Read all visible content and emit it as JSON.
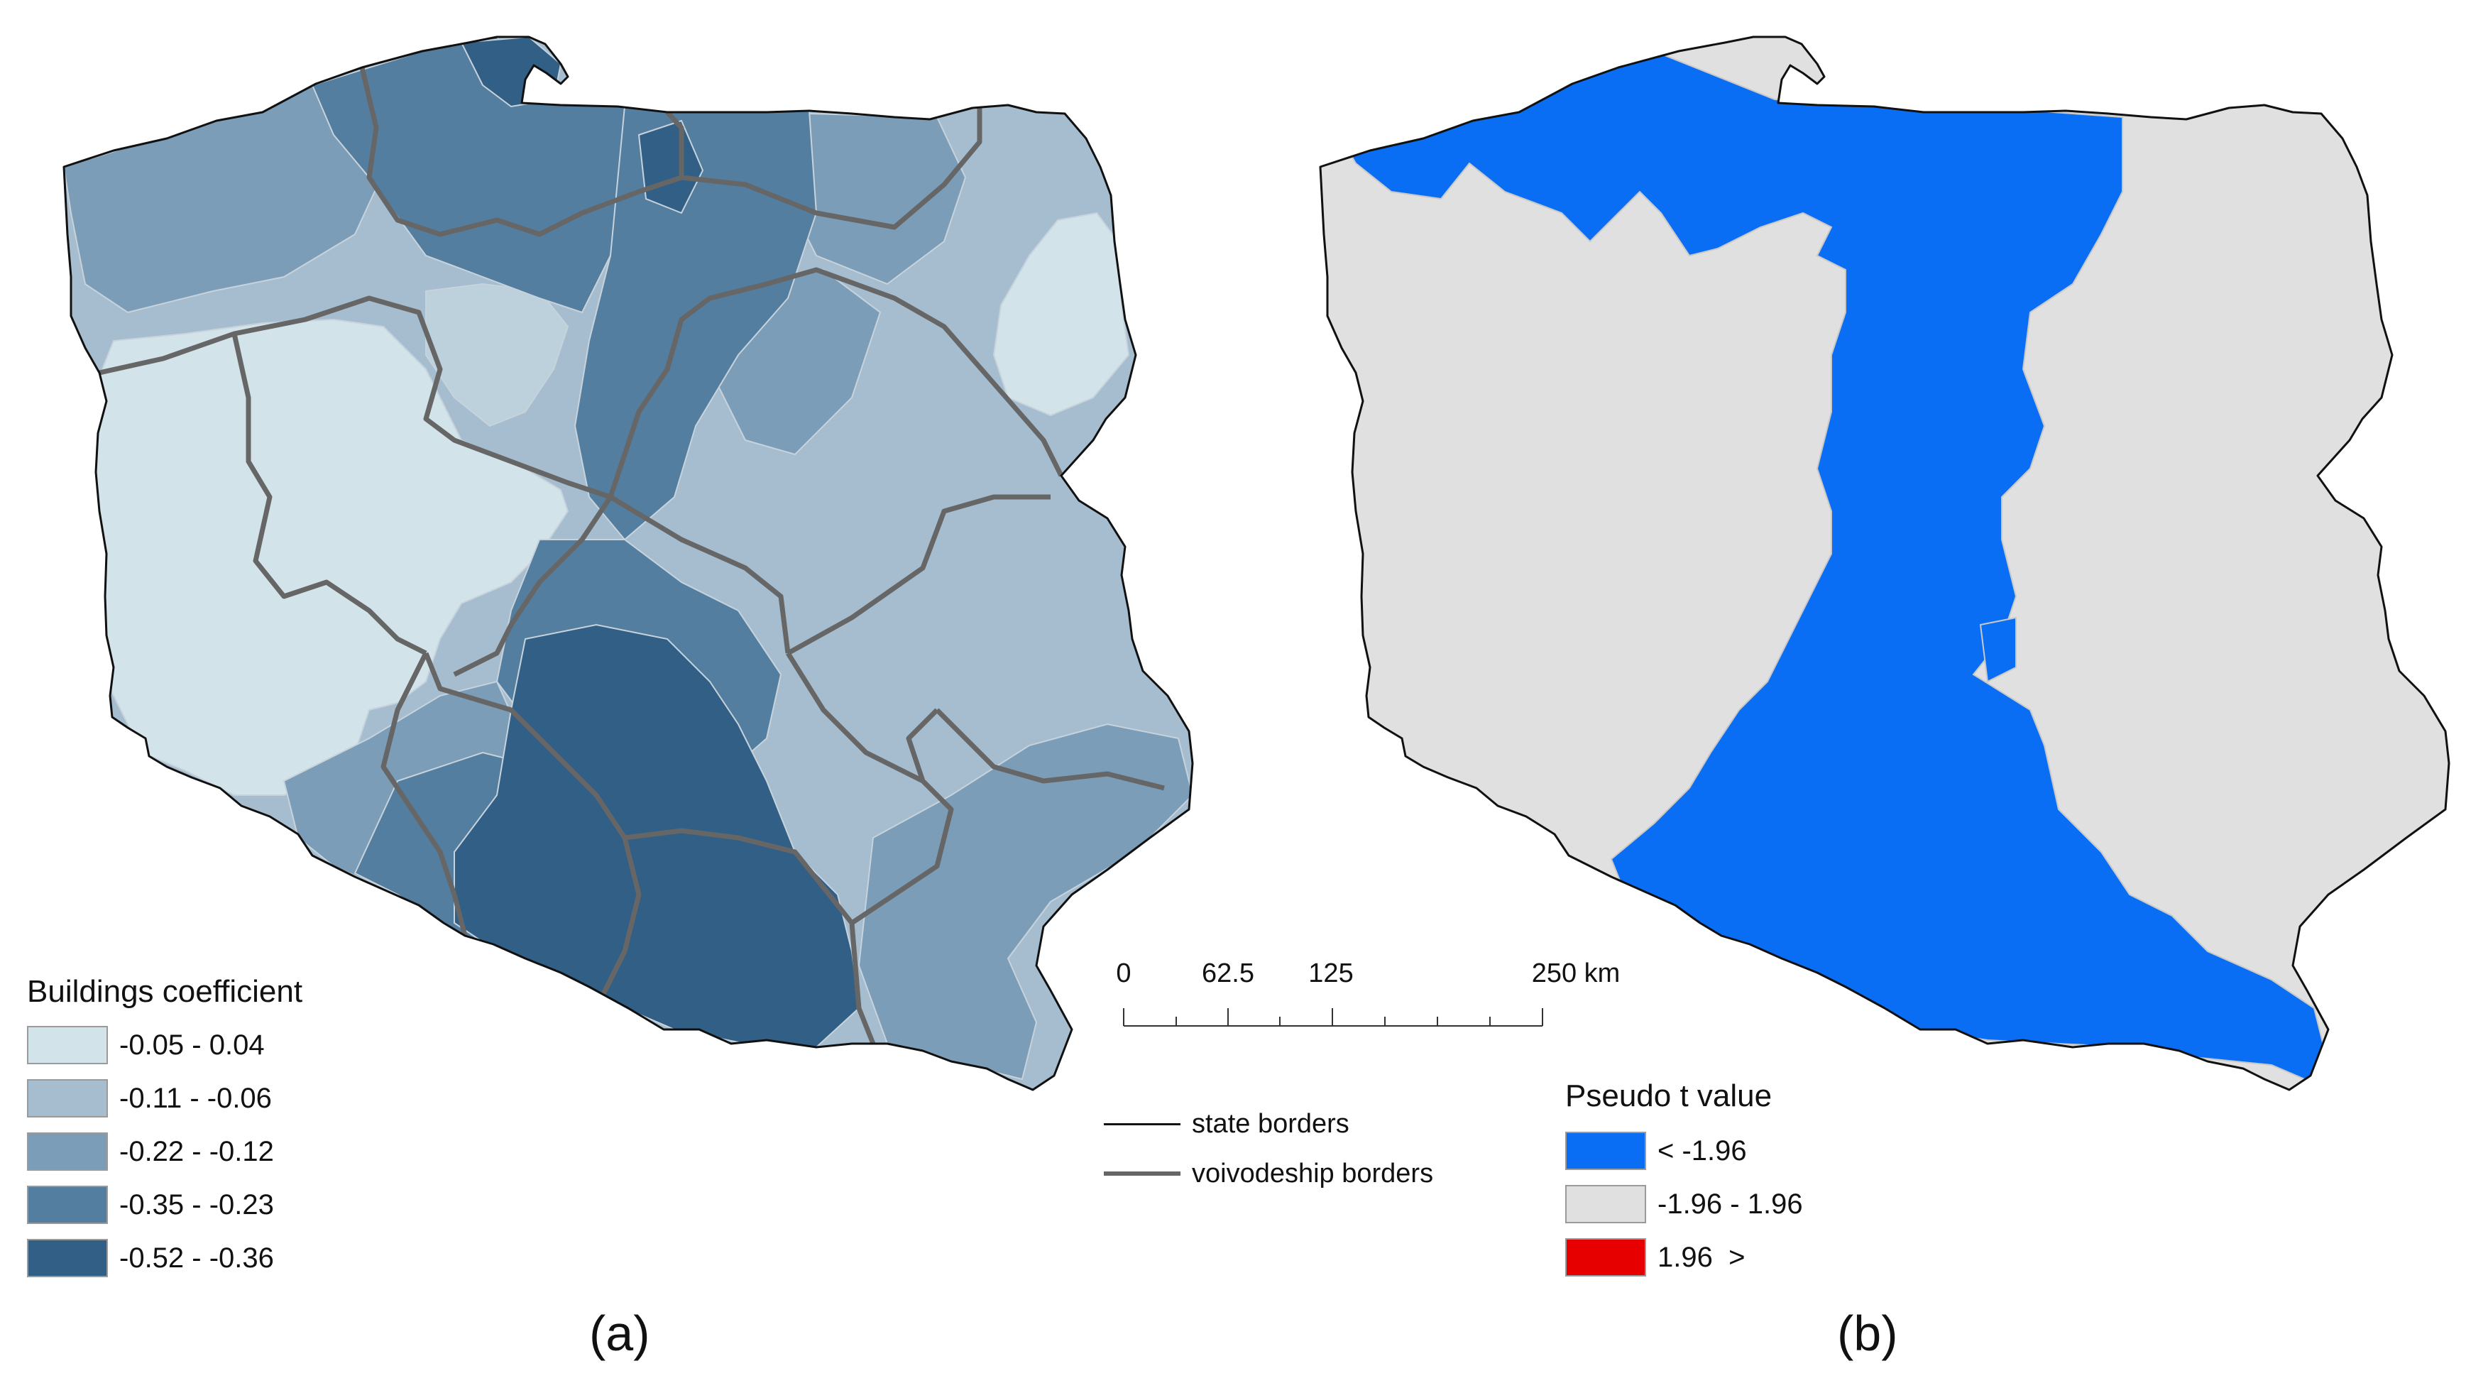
{
  "maps": {
    "a": {
      "panel_label": "(a)",
      "legend_title": "Buildings coefficient",
      "classes": [
        {
          "label": "-0.05 - 0.04",
          "color": "#d3e3ea"
        },
        {
          "label": "-0.11 - -0.06",
          "color": "#a5bdcf"
        },
        {
          "label": "-0.22 - -0.12",
          "color": "#7b9db8"
        },
        {
          "label": "-0.35 - -0.23",
          "color": "#547e9f"
        },
        {
          "label": "-0.52 - -0.36",
          "color": "#325f86"
        }
      ]
    },
    "b": {
      "panel_label": "(b)",
      "legend_title": "Pseudo t value",
      "classes": [
        {
          "label": "< -1.96",
          "color": "#0a6ef5"
        },
        {
          "label": "-1.96 - 1.96",
          "color": "#e0e0e0"
        },
        {
          "label": "1.96  >",
          "color": "#e60000"
        }
      ]
    }
  },
  "scale_bar": {
    "unit": "km",
    "ticks": [
      {
        "value": "0",
        "label": "0"
      },
      {
        "value": "62.5",
        "label": "62.5"
      },
      {
        "value": "125",
        "label": "125"
      },
      {
        "value": "250",
        "label": "250 km"
      }
    ]
  },
  "border_legend": [
    {
      "label": "state borders",
      "line_color": "#111111",
      "line_style": "thin"
    },
    {
      "label": "voivodeship borders",
      "line_color": "#666666",
      "line_style": "thick"
    }
  ]
}
